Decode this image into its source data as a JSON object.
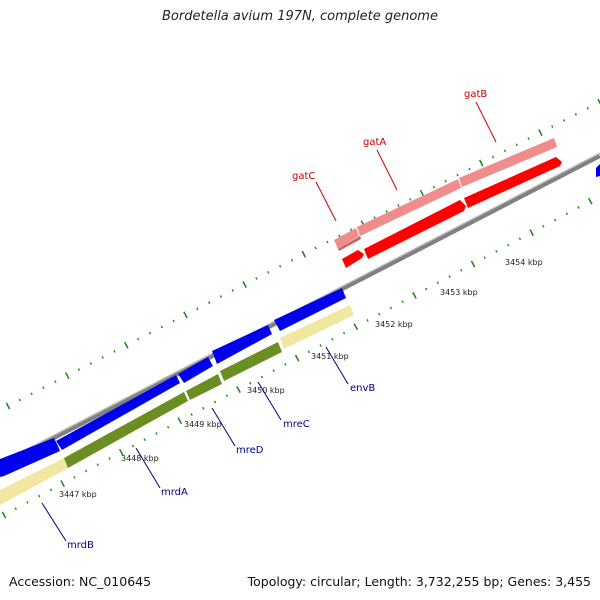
{
  "title": "Bordetella avium 197N, complete genome",
  "footer": {
    "accession": "Accession: NC_010645",
    "summary": "Topology: circular; Length: 3,732,255 bp; Genes: 3,455"
  },
  "colors": {
    "forward_cds": "#ff0000",
    "forward_rrna": "#f08c8c",
    "reverse_cds": "#0000ee",
    "reverse_feature_light": "#f0e8a0",
    "reverse_feature_green": "#6b8e23",
    "label_forward": "#cc0000",
    "label_reverse": "#00008b",
    "tick": "#228b22",
    "backbone": "#808080"
  },
  "scale_labels": [
    "3447 kbp",
    "3448 kbp",
    "3449 kbp",
    "3450 kbp",
    "3451 kbp",
    "3452 kbp",
    "3453 kbp",
    "3454 kbp"
  ],
  "genes": {
    "forward": [
      "gatC",
      "gatA",
      "gatB"
    ],
    "reverse": [
      "mrdB",
      "mrdA",
      "mreD",
      "mreC",
      "envB"
    ]
  }
}
